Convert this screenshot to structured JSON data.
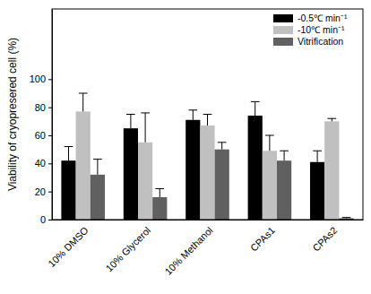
{
  "chart_data": {
    "type": "bar",
    "y_label": "Viability of cryopresered cell (%)",
    "categories": [
      "10% DMSO",
      "10% Glycerol",
      "10% Methanol",
      "CPAs1",
      "CPAs2"
    ],
    "series": [
      {
        "name": "-0.5℃ min⁻¹",
        "color": "#000000",
        "values": [
          42,
          65,
          71,
          74,
          41
        ],
        "errors": [
          10,
          10,
          7,
          10,
          8
        ]
      },
      {
        "name": "-10℃ min⁻¹",
        "color": "#c0c0c0",
        "values": [
          77,
          55,
          67,
          49,
          70
        ],
        "errors": [
          13,
          21,
          8,
          11,
          2
        ]
      },
      {
        "name": "Vitrification",
        "color": "#606060",
        "values": [
          32,
          16,
          50,
          42,
          1
        ],
        "errors": [
          11,
          6,
          5,
          7,
          0.5
        ]
      }
    ],
    "ylim": [
      0,
      150
    ],
    "yticks": [
      0,
      20,
      40,
      60,
      80,
      100
    ],
    "legend": "upper right",
    "grid": false
  }
}
